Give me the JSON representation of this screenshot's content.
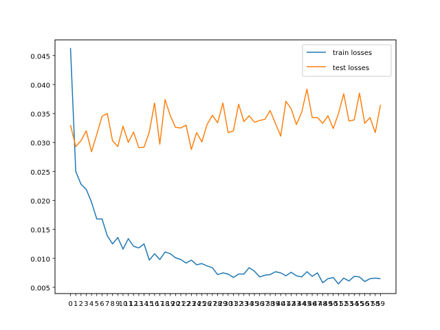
{
  "chart_data": {
    "type": "line",
    "title": "",
    "xlabel": "",
    "ylabel": "",
    "x": [
      0,
      1,
      2,
      3,
      4,
      5,
      6,
      7,
      8,
      9,
      10,
      11,
      12,
      13,
      14,
      15,
      16,
      17,
      18,
      19,
      20,
      21,
      22,
      23,
      24,
      25,
      26,
      27,
      28,
      29,
      30,
      31,
      32,
      33,
      34,
      35,
      36,
      37,
      38,
      39,
      40,
      41,
      42,
      43,
      44,
      45,
      46,
      47,
      48,
      49,
      50,
      51,
      52,
      53,
      54,
      55,
      56,
      57,
      58,
      59
    ],
    "xlim": [
      -2.95,
      61.95
    ],
    "ylim": [
      0.00393,
      0.0477
    ],
    "yticks": [
      0.005,
      0.01,
      0.015,
      0.02,
      0.025,
      0.03,
      0.035,
      0.04,
      0.045
    ],
    "ytick_labels": [
      "0.005",
      "0.010",
      "0.015",
      "0.020",
      "0.025",
      "0.030",
      "0.035",
      "0.040",
      "0.045"
    ],
    "grid": false,
    "legend_position": "top-right",
    "series": [
      {
        "name": "train losses",
        "color": "#1f77b4",
        "values": [
          0.0463,
          0.025,
          0.0228,
          0.0219,
          0.0197,
          0.0168,
          0.0168,
          0.0139,
          0.0125,
          0.0136,
          0.0116,
          0.0134,
          0.0121,
          0.0118,
          0.0125,
          0.0097,
          0.0108,
          0.0098,
          0.0111,
          0.0108,
          0.0101,
          0.0098,
          0.0092,
          0.0097,
          0.0089,
          0.0091,
          0.0087,
          0.0084,
          0.0072,
          0.0075,
          0.0073,
          0.0067,
          0.0073,
          0.0073,
          0.0084,
          0.0078,
          0.0068,
          0.0071,
          0.0072,
          0.0077,
          0.0075,
          0.007,
          0.0076,
          0.007,
          0.0068,
          0.0077,
          0.0069,
          0.0075,
          0.0058,
          0.0065,
          0.0067,
          0.0056,
          0.0066,
          0.0061,
          0.0069,
          0.0068,
          0.006,
          0.0065,
          0.0066,
          0.0065
        ]
      },
      {
        "name": "test losses",
        "color": "#ff7f0e",
        "values": [
          0.033,
          0.0293,
          0.0303,
          0.032,
          0.0284,
          0.0314,
          0.0345,
          0.035,
          0.0303,
          0.0293,
          0.0328,
          0.03,
          0.0318,
          0.0291,
          0.0292,
          0.0318,
          0.0368,
          0.0297,
          0.0374,
          0.0346,
          0.0326,
          0.0325,
          0.033,
          0.0288,
          0.0317,
          0.0301,
          0.0331,
          0.0347,
          0.0334,
          0.0368,
          0.0317,
          0.032,
          0.0366,
          0.0336,
          0.0346,
          0.0335,
          0.0338,
          0.034,
          0.0355,
          0.0333,
          0.0311,
          0.0371,
          0.0358,
          0.0331,
          0.0352,
          0.0392,
          0.0343,
          0.0343,
          0.0333,
          0.0346,
          0.0324,
          0.035,
          0.0384,
          0.0337,
          0.0339,
          0.0385,
          0.0333,
          0.0343,
          0.0317,
          0.0365
        ]
      }
    ]
  }
}
